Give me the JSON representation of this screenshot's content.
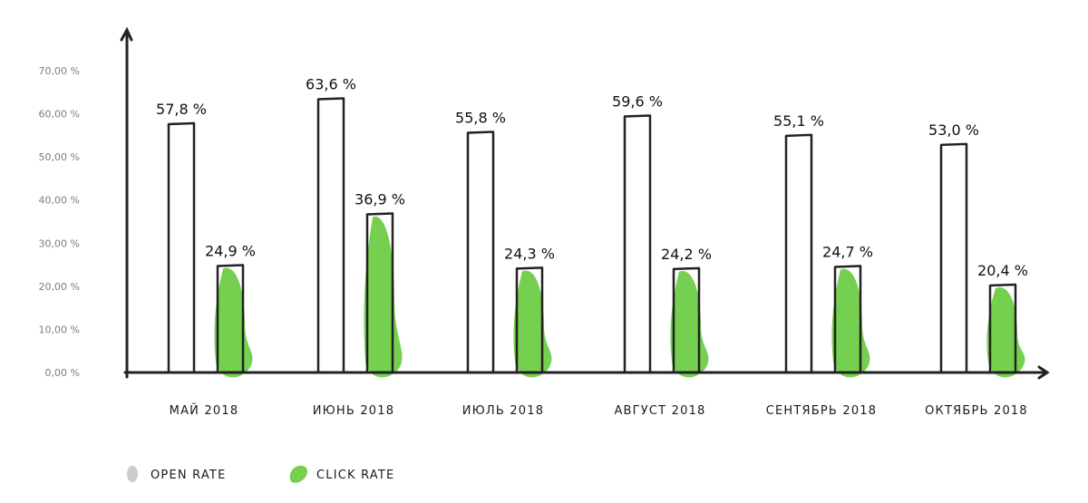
{
  "chart_data": {
    "type": "bar",
    "categories": [
      "МАЙ 2018",
      "ИЮНЬ 2018",
      "ИЮЛЬ 2018",
      "АВГУСТ 2018",
      "СЕНТЯБРЬ 2018",
      "ОКТЯБРЬ 2018"
    ],
    "series": [
      {
        "name": "OPEN RATE",
        "values": [
          57.8,
          63.6,
          55.8,
          59.6,
          55.1,
          53.0
        ],
        "labels": [
          "57,8 %",
          "63,6 %",
          "55,8 %",
          "59,6 %",
          "55,1 %",
          "53,0 %"
        ]
      },
      {
        "name": "CLICK RATE",
        "values": [
          24.9,
          36.9,
          24.3,
          24.2,
          24.7,
          20.4
        ],
        "labels": [
          "24,9 %",
          "36,9 %",
          "24,3 %",
          "24,2 %",
          "24,7 %",
          "20,4 %"
        ]
      }
    ],
    "yticks": [
      "0,00 %",
      "10,00 %",
      "20,00 %",
      "30,00 %",
      "40,00 %",
      "50,00 %",
      "60,00 %",
      "70,00 %"
    ],
    "ylim": [
      0,
      70
    ],
    "title": "",
    "xlabel": "",
    "ylabel": "",
    "grid": false,
    "legend": "bottom-left",
    "colors": {
      "open": "#cccccc",
      "click": "#76d04f",
      "axis": "#222222"
    }
  }
}
